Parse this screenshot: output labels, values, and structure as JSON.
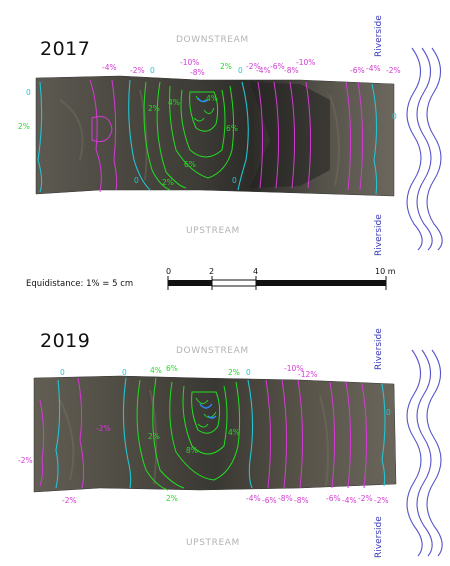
{
  "panels": [
    {
      "year": "2017",
      "downstream": "DOWNSTREAM",
      "upstream": "UPSTREAM",
      "riverside_top": "Riverside",
      "riverside_bottom": "Riverside",
      "contour_labels": [
        "2%",
        "0",
        "-4%",
        "-2%",
        "0",
        "-10%",
        "-8%",
        "2%",
        "0",
        "-2%",
        "-4%",
        "-6%",
        "-8%",
        "-10%",
        "-6%",
        "-4%",
        "-2%",
        "0",
        "2%",
        "4%",
        "6%",
        "4%",
        "6%",
        "0",
        "0",
        "2%"
      ]
    },
    {
      "year": "2019",
      "downstream": "DOWNSTREAM",
      "upstream": "UPSTREAM",
      "riverside_top": "Riverside",
      "riverside_bottom": "Riverside",
      "contour_labels": [
        "0",
        "0",
        "4%",
        "6%",
        "2%",
        "0",
        "-10%",
        "-12%",
        "-2%",
        "4%",
        "8%",
        "-2%",
        "2%",
        "-2%",
        "-4%",
        "-6%",
        "-8%",
        "-8%",
        "-6%",
        "-4%",
        "-2%",
        "-2%",
        "2%",
        "0"
      ]
    }
  ],
  "scale": {
    "equidistance": "Equidistance: 1% = 5 cm",
    "ticks": [
      "0",
      "2",
      "4",
      "10 m"
    ]
  },
  "colors": {
    "contour_positive": "#22dd22",
    "contour_zero": "#22c4d0",
    "contour_negative": "#d43ad4",
    "river": "#5555cc"
  }
}
